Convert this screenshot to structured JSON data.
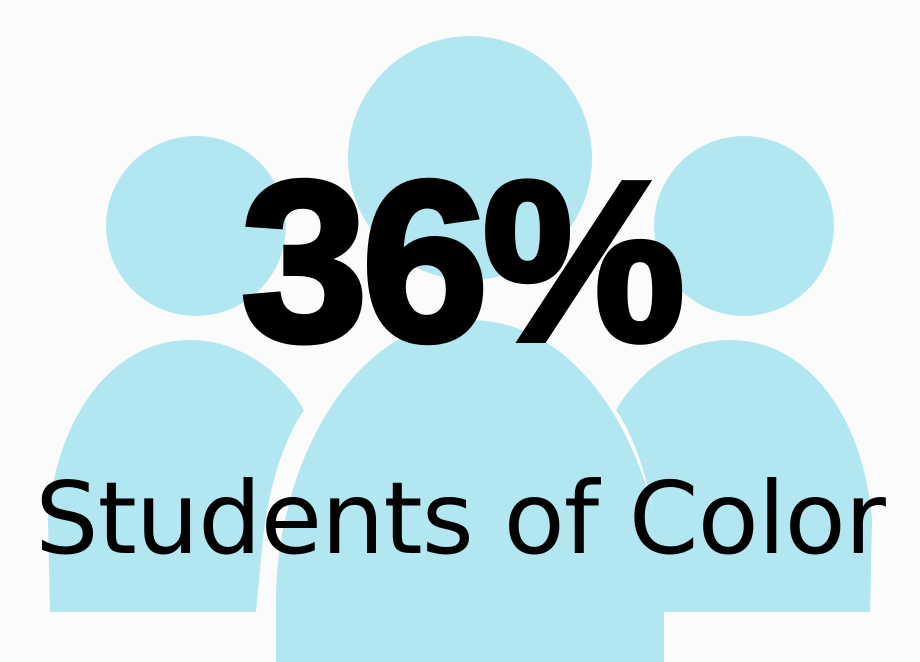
{
  "statistic": {
    "value": "36%",
    "label": "Students of Color"
  },
  "graphic": {
    "icon": "people-group-icon",
    "fill_color": "#b2e6f1"
  },
  "colors": {
    "background": "#fbfbfc",
    "text": "#000000"
  }
}
